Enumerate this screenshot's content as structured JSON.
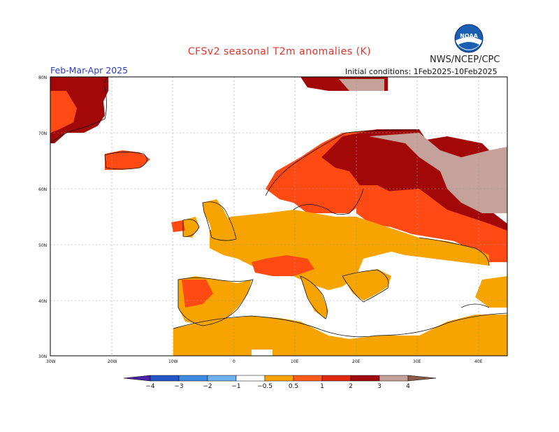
{
  "header": {
    "title": "CFSv2 seasonal T2m anomalies (K)",
    "org": "NWS/NCEP/CPC",
    "period": "Feb-Mar-Apr 2025",
    "initial_conditions": "Initial conditions: 1Feb2025-10Feb2025",
    "logo_text": "NOAA"
  },
  "map": {
    "lat_labels": [
      "80N",
      "70N",
      "60N",
      "50N",
      "40N",
      "30N"
    ],
    "lon_labels": [
      "30W",
      "20W",
      "10W",
      "0",
      "10E",
      "20E",
      "30E",
      "40E"
    ]
  },
  "colorbar": {
    "labels": [
      "-4",
      "-3",
      "-2",
      "-1",
      "-0.5",
      "0.5",
      "1",
      "2",
      "3",
      "4"
    ],
    "colors": [
      "#4a23a8",
      "#2356c4",
      "#3f8be0",
      "#6fb1f0",
      "#ffffff",
      "#f7a400",
      "#ff5a1a",
      "#e02a10",
      "#a10a0a",
      "#c4a29a",
      "#8a5a4a"
    ],
    "legend": {
      "0.5-1": "#f7a400",
      "1-2": "#ff4a14",
      "2-3": "#a30808",
      "3-4": "#c4a29a"
    }
  }
}
